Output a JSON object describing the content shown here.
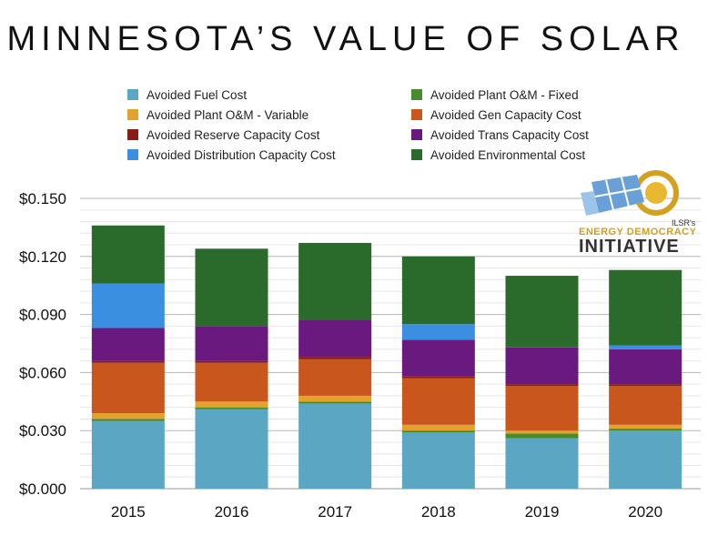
{
  "chart_data": {
    "type": "bar",
    "stacked": true,
    "title": "MINNESOTA’S VALUE OF SOLAR",
    "xlabel": "",
    "ylabel": "",
    "ylim": [
      0,
      0.15
    ],
    "yticks": [
      "$0.000",
      "$0.030",
      "$0.060",
      "$0.090",
      "$0.120",
      "$0.150"
    ],
    "ytick_values": [
      0,
      0.03,
      0.06,
      0.09,
      0.12,
      0.15
    ],
    "grid": true,
    "legend_position": "top",
    "categories": [
      "2015",
      "2016",
      "2017",
      "2018",
      "2019",
      "2020"
    ],
    "series": [
      {
        "name": "Avoided Fuel Cost",
        "color": "#5aa6c3",
        "values": [
          0.035,
          0.041,
          0.044,
          0.029,
          0.026,
          0.03
        ]
      },
      {
        "name": "Avoided Plant O&M - Fixed",
        "color": "#4a8a2e",
        "values": [
          0.001,
          0.001,
          0.001,
          0.001,
          0.0025,
          0.001
        ]
      },
      {
        "name": "Avoided Plant O&M - Variable",
        "color": "#e3a22c",
        "values": [
          0.003,
          0.003,
          0.003,
          0.003,
          0.0015,
          0.002
        ]
      },
      {
        "name": "Avoided Gen Capacity Cost",
        "color": "#c8561d",
        "values": [
          0.026,
          0.02,
          0.019,
          0.024,
          0.023,
          0.02
        ]
      },
      {
        "name": "Avoided Reserve Capacity Cost",
        "color": "#8b1c14",
        "values": [
          0.001,
          0.001,
          0.001,
          0.001,
          0.001,
          0.001
        ]
      },
      {
        "name": "Avoided Trans Capacity Cost",
        "color": "#6a1a7e",
        "values": [
          0.017,
          0.018,
          0.019,
          0.019,
          0.019,
          0.018
        ]
      },
      {
        "name": "Avoided Distribution Capacity Cost",
        "color": "#3a8fe0",
        "values": [
          0.023,
          0.0,
          0.0,
          0.008,
          0.0,
          0.002
        ]
      },
      {
        "name": "Avoided Environmental Cost",
        "color": "#2a6a2a",
        "values": [
          0.03,
          0.04,
          0.04,
          0.035,
          0.037,
          0.039
        ]
      }
    ]
  },
  "logo": {
    "small": "ILSR's",
    "line1": "ENERGY DEMOCRACY",
    "line2": "INITIATIVE"
  }
}
